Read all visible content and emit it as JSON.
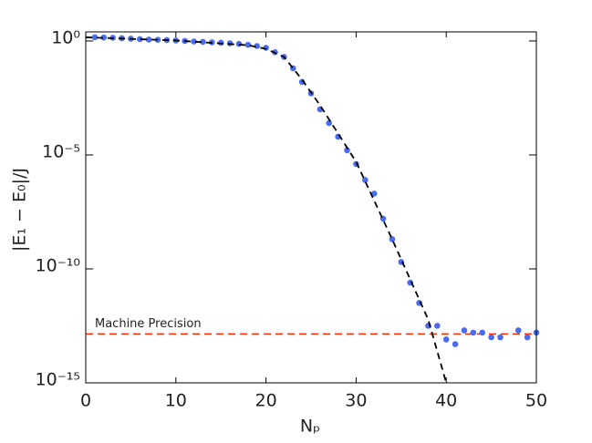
{
  "chart_data": {
    "type": "scatter",
    "xlabel": "Nₚ",
    "ylabel": "|E₁ − E₀|/J",
    "xlim": [
      0,
      50
    ],
    "ylim": [
      1e-15,
      2.5
    ],
    "log_y": true,
    "xticks": [
      0,
      10,
      20,
      30,
      40,
      50
    ],
    "yticks": [
      {
        "value": 1,
        "label": "10⁰"
      },
      {
        "value": 1e-05,
        "label": "10⁻⁵"
      },
      {
        "value": 1e-10,
        "label": "10⁻¹⁰"
      },
      {
        "value": 1e-15,
        "label": "10⁻¹⁵"
      }
    ],
    "series": [
      {
        "kind": "points",
        "color": "#4a6cf0",
        "x": [
          1,
          2,
          3,
          4,
          5,
          6,
          7,
          8,
          9,
          10,
          11,
          12,
          13,
          14,
          15,
          16,
          17,
          18,
          19,
          20,
          21,
          22,
          23,
          24,
          25,
          26,
          27,
          28,
          29,
          30,
          31,
          32,
          33,
          34,
          35,
          36,
          37,
          38,
          39,
          40,
          41,
          42,
          43,
          44,
          45,
          46,
          47,
          48,
          49,
          50
        ],
        "values": [
          1.45,
          1.41,
          1.38,
          1.32,
          1.26,
          1.2,
          1.15,
          1.12,
          1.1,
          1.05,
          1.0,
          0.95,
          0.91,
          0.87,
          0.83,
          0.79,
          0.74,
          0.68,
          0.6,
          0.5,
          0.32,
          0.2,
          0.063,
          0.016,
          0.005,
          0.001,
          0.00025,
          6.3e-05,
          1.6e-05,
          4e-06,
          8e-07,
          2e-07,
          1.6e-08,
          2e-09,
          2e-10,
          2.5e-11,
          3.2e-12,
          3.2e-13,
          3.2e-13,
          8e-14,
          5e-14,
          2e-13,
          1.6e-13,
          1.6e-13,
          1e-13,
          1e-13,
          null,
          2e-13,
          1e-13,
          1.6e-13
        ]
      },
      {
        "kind": "dashed-line",
        "color": "#000000",
        "x": [
          0,
          10,
          18,
          20,
          22,
          24,
          26,
          30,
          34,
          38,
          40
        ],
        "values": [
          1.45,
          1.05,
          0.65,
          0.45,
          0.2,
          0.02,
          0.0015,
          5e-06,
          2e-09,
          6e-13,
          1e-15
        ]
      }
    ],
    "hline": {
      "value": 1.4e-13,
      "label": "Machine Precision",
      "color": "#ff2a00"
    }
  }
}
